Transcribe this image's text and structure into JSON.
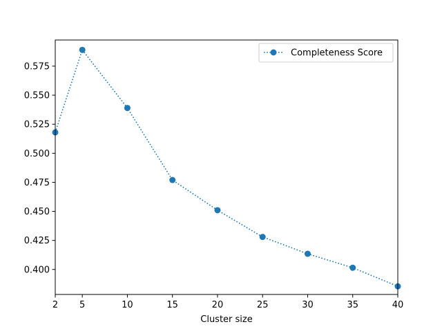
{
  "chart_data": {
    "type": "line",
    "title": "",
    "xlabel": "Cluster size",
    "ylabel": "",
    "xlim": [
      2,
      40
    ],
    "ylim": [
      0.3785,
      0.5975
    ],
    "x_ticks": [
      2,
      5,
      10,
      15,
      20,
      25,
      30,
      35,
      40
    ],
    "x_tick_labels": [
      "2",
      "5",
      "10",
      "15",
      "20",
      "25",
      "30",
      "35",
      "40"
    ],
    "y_ticks": [
      0.4,
      0.425,
      0.45,
      0.475,
      0.5,
      0.525,
      0.55,
      0.575
    ],
    "y_tick_labels": [
      "0.400",
      "0.425",
      "0.450",
      "0.475",
      "0.500",
      "0.525",
      "0.550",
      "0.575"
    ],
    "grid": false,
    "legend_position": "top-right",
    "series": [
      {
        "name": "Completeness Score",
        "color": "#1f77b4",
        "line_style": "dotted",
        "marker": "circle",
        "x": [
          2,
          5,
          10,
          15,
          20,
          25,
          30,
          35,
          40
        ],
        "y": [
          0.518,
          0.589,
          0.539,
          0.477,
          0.451,
          0.428,
          0.4135,
          0.4015,
          0.3855
        ]
      }
    ]
  }
}
